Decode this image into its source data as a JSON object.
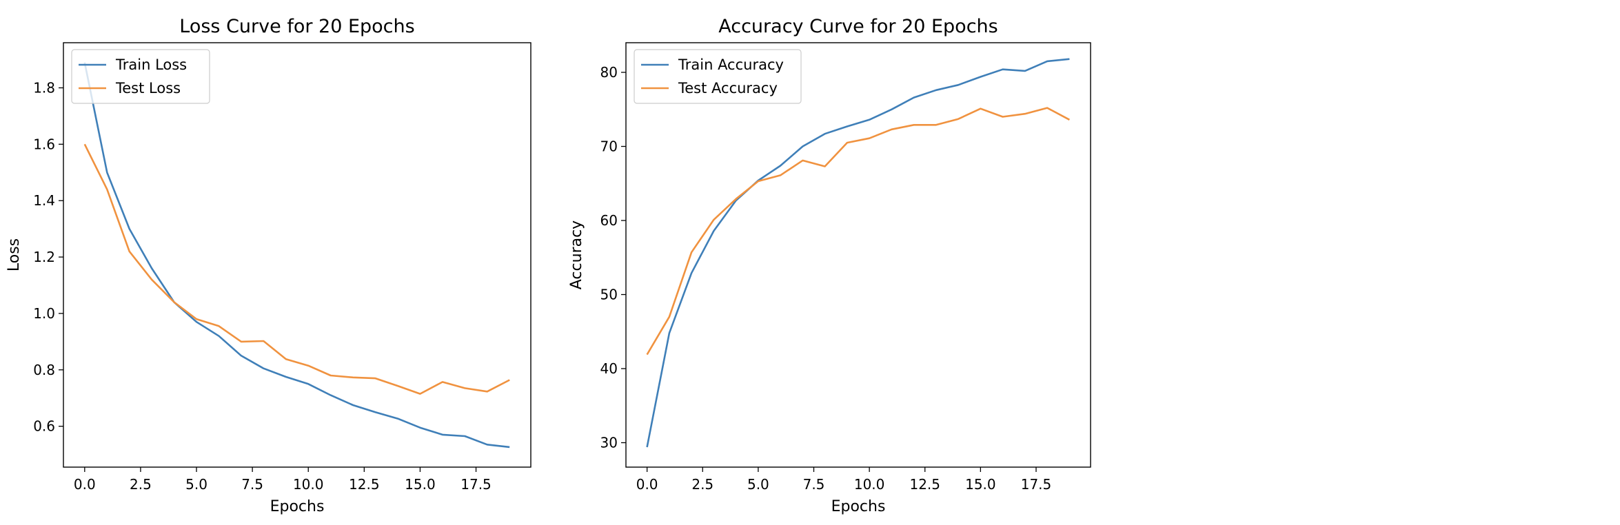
{
  "colors": {
    "train": "#3f7fb8",
    "test": "#f0923f",
    "axis": "#000000"
  },
  "chart_data": [
    {
      "type": "line",
      "title": "Loss Curve for 20 Epochs",
      "xlabel": "Epochs",
      "ylabel": "Loss",
      "xlim": [
        -0.95,
        19.95
      ],
      "ylim": [
        0.455,
        1.96
      ],
      "xticks": [
        0,
        2.5,
        5,
        7.5,
        10,
        12.5,
        15,
        17.5
      ],
      "xtick_labels": [
        "0.0",
        "2.5",
        "5.0",
        "7.5",
        "10.0",
        "12.5",
        "15.0",
        "17.5"
      ],
      "yticks": [
        0.6,
        0.8,
        1.0,
        1.2,
        1.4,
        1.6,
        1.8
      ],
      "ytick_labels": [
        "0.6",
        "0.8",
        "1.0",
        "1.2",
        "1.4",
        "1.6",
        "1.8"
      ],
      "grid": false,
      "legend_position": "upper-left",
      "x": [
        0,
        1,
        2,
        3,
        4,
        5,
        6,
        7,
        8,
        9,
        10,
        11,
        12,
        13,
        14,
        15,
        16,
        17,
        18,
        19
      ],
      "series": [
        {
          "name": "Train Loss",
          "color_key": "train",
          "values": [
            1.89,
            1.5,
            1.3,
            1.16,
            1.04,
            0.97,
            0.92,
            0.85,
            0.805,
            0.775,
            0.75,
            0.71,
            0.675,
            0.65,
            0.627,
            0.595,
            0.57,
            0.565,
            0.535,
            0.526
          ]
        },
        {
          "name": "Test Loss",
          "color_key": "test",
          "values": [
            1.6,
            1.44,
            1.22,
            1.12,
            1.04,
            0.98,
            0.955,
            0.9,
            0.902,
            0.838,
            0.815,
            0.78,
            0.773,
            0.77,
            0.743,
            0.715,
            0.757,
            0.735,
            0.723,
            0.764
          ]
        }
      ]
    },
    {
      "type": "line",
      "title": "Accuracy Curve for 20 Epochs",
      "xlabel": "Epochs",
      "ylabel": "Accuracy",
      "xlim": [
        -0.95,
        19.95
      ],
      "ylim": [
        26.7,
        84.0
      ],
      "xticks": [
        0,
        2.5,
        5,
        7.5,
        10,
        12.5,
        15,
        17.5
      ],
      "xtick_labels": [
        "0.0",
        "2.5",
        "5.0",
        "7.5",
        "10.0",
        "12.5",
        "15.0",
        "17.5"
      ],
      "yticks": [
        30,
        40,
        50,
        60,
        70,
        80
      ],
      "ytick_labels": [
        "30",
        "40",
        "50",
        "60",
        "70",
        "80"
      ],
      "grid": false,
      "legend_position": "upper-left",
      "x": [
        0,
        1,
        2,
        3,
        4,
        5,
        6,
        7,
        8,
        9,
        10,
        11,
        12,
        13,
        14,
        15,
        16,
        17,
        18,
        19
      ],
      "series": [
        {
          "name": "Train Accuracy",
          "color_key": "train",
          "values": [
            29.4,
            44.8,
            52.9,
            58.6,
            62.7,
            65.4,
            67.4,
            70.0,
            71.7,
            72.7,
            73.6,
            75.0,
            76.6,
            77.6,
            78.3,
            79.4,
            80.4,
            80.2,
            81.5,
            81.8
          ]
        },
        {
          "name": "Test Accuracy",
          "color_key": "test",
          "values": [
            41.9,
            47.0,
            55.7,
            60.1,
            62.9,
            65.3,
            66.1,
            68.1,
            67.3,
            70.5,
            71.1,
            72.3,
            72.9,
            72.9,
            73.7,
            75.1,
            74.0,
            74.4,
            75.2,
            73.6
          ]
        }
      ]
    }
  ]
}
